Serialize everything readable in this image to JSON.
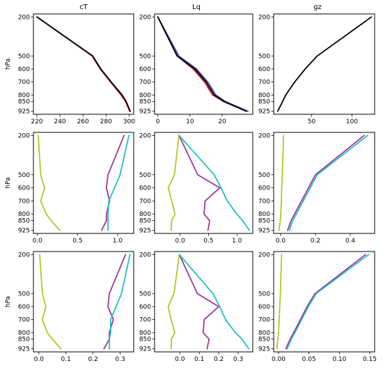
{
  "figure": {
    "column_titles": [
      "cT",
      "Lq",
      "gz"
    ],
    "ylabel": "hPa"
  },
  "colors": {
    "black": "#000000",
    "blue": "#3344bb",
    "red": "#cc2222",
    "olive": "#b8c225",
    "purple": "#a0359a",
    "teal": "#20c0c0"
  },
  "pressure_ticks": [
    200,
    500,
    600,
    700,
    800,
    850,
    925
  ],
  "chart_data": [
    {
      "type": "line",
      "row": 0,
      "col": 0,
      "title": "cT",
      "ylabel": "hPa",
      "xlim": [
        217,
        304
      ],
      "ylim": [
        925,
        200
      ],
      "xticks": [
        "220",
        "240",
        "260",
        "280",
        "300"
      ],
      "xtick_values": [
        220,
        240,
        260,
        280,
        300
      ],
      "y": [
        200,
        500,
        600,
        700,
        800,
        850,
        925
      ],
      "series": [
        {
          "color": "blue",
          "values": [
            220,
            268,
            275,
            284,
            294,
            297,
            301
          ]
        },
        {
          "color": "red",
          "values": [
            220,
            268,
            275,
            284,
            293,
            297,
            300.5
          ]
        },
        {
          "color": "black",
          "values": [
            220,
            268.5,
            275.5,
            284.5,
            294,
            297.5,
            301
          ]
        }
      ]
    },
    {
      "type": "line",
      "row": 0,
      "col": 1,
      "title": "Lq",
      "xlim": [
        -1,
        29.5
      ],
      "ylim": [
        925,
        200
      ],
      "xticks": [
        "0",
        "10",
        "20"
      ],
      "xtick_values": [
        0,
        10,
        20
      ],
      "y": [
        200,
        500,
        600,
        700,
        800,
        850,
        925
      ],
      "series": [
        {
          "color": "blue",
          "values": [
            0,
            6.5,
            12,
            15.5,
            18,
            21,
            28
          ]
        },
        {
          "color": "red",
          "values": [
            0,
            6,
            11,
            14.5,
            17,
            20.5,
            27.5
          ]
        },
        {
          "color": "black",
          "values": [
            0,
            6,
            11.5,
            15,
            17.5,
            20.5,
            27.5
          ]
        }
      ]
    },
    {
      "type": "line",
      "row": 0,
      "col": 2,
      "title": "gz",
      "xlim": [
        3,
        128
      ],
      "ylim": [
        925,
        200
      ],
      "xticks": [
        "50",
        "100"
      ],
      "xtick_values": [
        50,
        100
      ],
      "y": [
        200,
        500,
        600,
        700,
        800,
        850,
        925
      ],
      "series": [
        {
          "color": "black",
          "values": [
            124,
            57,
            42,
            29,
            18,
            14,
            8
          ]
        }
      ]
    },
    {
      "type": "line",
      "row": 1,
      "col": 0,
      "ylabel": "hPa",
      "xlim": [
        -0.05,
        1.2
      ],
      "ylim": [
        925,
        200
      ],
      "xticks": [
        "0.0",
        "0.5",
        "1.0"
      ],
      "xtick_values": [
        0,
        0.5,
        1.0
      ],
      "y": [
        200,
        500,
        600,
        700,
        800,
        850,
        925
      ],
      "series": [
        {
          "color": "olive",
          "values": [
            0.01,
            0.04,
            0.09,
            0.04,
            0.11,
            0.17,
            0.28
          ]
        },
        {
          "color": "purple",
          "values": [
            1.08,
            0.88,
            0.86,
            0.9,
            0.86,
            0.86,
            0.8
          ]
        },
        {
          "color": "teal",
          "values": [
            1.14,
            1.03,
            0.96,
            0.89,
            0.88,
            0.88,
            0.88
          ]
        }
      ]
    },
    {
      "type": "line",
      "row": 1,
      "col": 1,
      "xlim": [
        -0.45,
        1.28
      ],
      "ylim": [
        925,
        200
      ],
      "xticks": [
        "0.0",
        "0.5",
        "1.0"
      ],
      "xtick_values": [
        0,
        0.5,
        1.0
      ],
      "y": [
        200,
        500,
        600,
        700,
        800,
        850,
        925
      ],
      "series": [
        {
          "color": "olive",
          "values": [
            -0.02,
            -0.1,
            -0.21,
            -0.15,
            -0.09,
            -0.15,
            -0.16
          ]
        },
        {
          "color": "purple",
          "values": [
            -0.02,
            0.31,
            0.7,
            0.44,
            0.42,
            0.52,
            0.49
          ]
        },
        {
          "color": "teal",
          "values": [
            -0.02,
            0.6,
            0.72,
            0.83,
            1.0,
            1.1,
            1.22
          ]
        }
      ]
    },
    {
      "type": "line",
      "row": 1,
      "col": 2,
      "xlim": [
        -0.04,
        0.54
      ],
      "ylim": [
        925,
        200
      ],
      "xticks": [
        "0.0",
        "0.2",
        "0.4"
      ],
      "xtick_values": [
        0,
        0.2,
        0.4
      ],
      "y": [
        200,
        500,
        600,
        700,
        800,
        850,
        925
      ],
      "series": [
        {
          "color": "olive",
          "values": [
            0.017,
            0.009,
            0.006,
            0.004,
            0.001,
            -0.002,
            -0.01
          ]
        },
        {
          "color": "purple",
          "values": [
            0.48,
            0.2,
            0.16,
            0.12,
            0.08,
            0.06,
            0.04
          ]
        },
        {
          "color": "teal",
          "values": [
            0.5,
            0.21,
            0.17,
            0.13,
            0.09,
            0.07,
            0.05
          ]
        }
      ]
    },
    {
      "type": "line",
      "row": 2,
      "col": 0,
      "ylabel": "hPa",
      "xlim": [
        -0.02,
        0.35
      ],
      "ylim": [
        925,
        200
      ],
      "xticks": [
        "0.0",
        "0.1",
        "0.2",
        "0.3"
      ],
      "xtick_values": [
        0,
        0.1,
        0.2,
        0.3
      ],
      "y": [
        200,
        500,
        600,
        700,
        800,
        850,
        925
      ],
      "series": [
        {
          "color": "olive",
          "values": [
            0.003,
            0.013,
            0.026,
            0.013,
            0.031,
            0.05,
            0.082
          ]
        },
        {
          "color": "purple",
          "values": [
            0.32,
            0.26,
            0.255,
            0.275,
            0.26,
            0.26,
            0.24
          ]
        },
        {
          "color": "teal",
          "values": [
            0.336,
            0.305,
            0.285,
            0.265,
            0.265,
            0.26,
            0.26
          ]
        }
      ]
    },
    {
      "type": "line",
      "row": 2,
      "col": 1,
      "xlim": [
        -0.13,
        0.375
      ],
      "ylim": [
        925,
        200
      ],
      "xticks": [
        "0.0",
        "0.1",
        "0.2",
        "0.3"
      ],
      "xtick_values": [
        0,
        0.1,
        0.2,
        0.3
      ],
      "y": [
        200,
        500,
        600,
        700,
        800,
        850,
        925
      ],
      "series": [
        {
          "color": "olive",
          "values": [
            -0.003,
            -0.03,
            -0.06,
            -0.045,
            -0.026,
            -0.043,
            -0.045
          ]
        },
        {
          "color": "purple",
          "values": [
            -0.003,
            0.09,
            0.2,
            0.125,
            0.12,
            0.15,
            0.14
          ]
        },
        {
          "color": "teal",
          "values": [
            -0.003,
            0.17,
            0.205,
            0.235,
            0.285,
            0.32,
            0.355
          ]
        }
      ]
    },
    {
      "type": "line",
      "row": 2,
      "col": 2,
      "xlim": [
        -0.008,
        0.158
      ],
      "ylim": [
        925,
        200
      ],
      "xticks": [
        "0.00",
        "0.05",
        "0.10",
        "0.15"
      ],
      "xtick_values": [
        0,
        0.05,
        0.1,
        0.15
      ],
      "y": [
        200,
        500,
        600,
        700,
        800,
        850,
        925
      ],
      "series": [
        {
          "color": "olive",
          "values": [
            0.005,
            0.003,
            0.002,
            0.001,
            0.0,
            -0.001,
            -0.003
          ]
        },
        {
          "color": "purple",
          "values": [
            0.143,
            0.06,
            0.047,
            0.036,
            0.025,
            0.019,
            0.012
          ]
        },
        {
          "color": "teal",
          "values": [
            0.148,
            0.062,
            0.049,
            0.038,
            0.027,
            0.021,
            0.014
          ]
        }
      ]
    }
  ]
}
